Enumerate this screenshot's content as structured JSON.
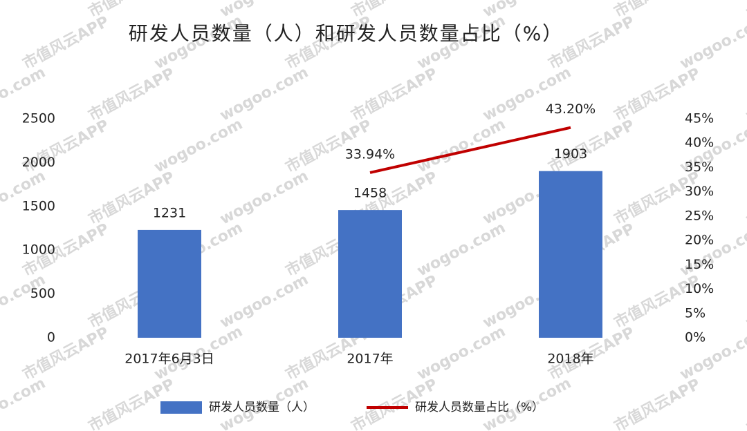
{
  "chart_data": {
    "type": "bar_line",
    "title": "研发人员数量（人）和研发人员数量占比（%）",
    "categories": [
      "2017年6月3日",
      "2017年",
      "2018年"
    ],
    "series": [
      {
        "name": "研发人员数量（人）",
        "type": "bar",
        "color": "#4472c4",
        "values": [
          1231,
          1458,
          1903
        ]
      },
      {
        "name": "研发人员数量占比（%）",
        "type": "line",
        "axis": "y2",
        "color": "#c00000",
        "values": [
          null,
          33.94,
          43.2
        ],
        "value_labels": [
          null,
          "33.94%",
          "43.20%"
        ]
      }
    ],
    "ylim": [
      0,
      2500
    ],
    "yticks": [
      0,
      500,
      1000,
      1500,
      2000,
      2500
    ],
    "y2lim": [
      0,
      45
    ],
    "y2ticks": [
      {
        "value": 0,
        "label": "0%"
      },
      {
        "value": 5,
        "label": "5%"
      },
      {
        "value": 10,
        "label": "10%"
      },
      {
        "value": 15,
        "label": "15%"
      },
      {
        "value": 20,
        "label": "20%"
      },
      {
        "value": 25,
        "label": "25%"
      },
      {
        "value": 30,
        "label": "30%"
      },
      {
        "value": 35,
        "label": "35%"
      },
      {
        "value": 40,
        "label": "40%"
      },
      {
        "value": 45,
        "label": "45%"
      }
    ],
    "grid": false,
    "legend": "bottom",
    "watermark": [
      "wogoo.com",
      "市值风云APP"
    ]
  }
}
